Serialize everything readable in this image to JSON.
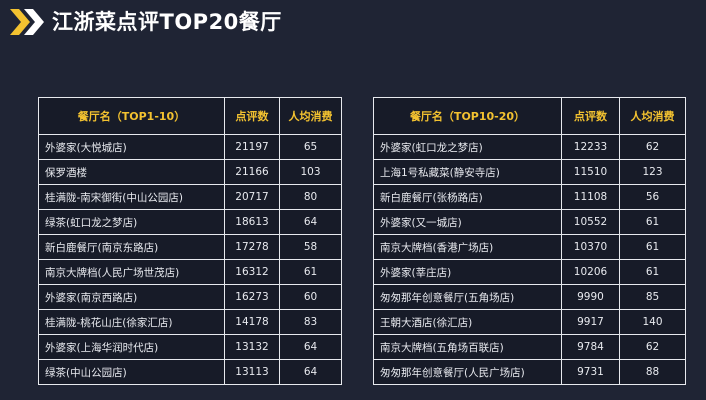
{
  "page": {
    "title": "江浙菜点评TOP20餐厅"
  },
  "colors": {
    "background": "#1f2434",
    "accent": "#f3c230",
    "text": "#e8eaef",
    "border": "#e7e9ee"
  },
  "icons": {
    "header": "double-chevron-right-icon"
  },
  "left_table": {
    "headers": [
      "餐厅名（TOP1-10）",
      "点评数",
      "人均消费"
    ],
    "rows": [
      [
        "外婆家(大悦城店)",
        "21197",
        "65"
      ],
      [
        "保罗酒楼",
        "21166",
        "103"
      ],
      [
        "桂满陇-南宋御街(中山公园店)",
        "20717",
        "80"
      ],
      [
        "绿茶(虹口龙之梦店)",
        "18613",
        "64"
      ],
      [
        "新白鹿餐厅(南京东路店)",
        "17278",
        "58"
      ],
      [
        "南京大牌档(人民广场世茂店)",
        "16312",
        "61"
      ],
      [
        "外婆家(南京西路店)",
        "16273",
        "60"
      ],
      [
        "桂满陇-桃花山庄(徐家汇店)",
        "14178",
        "83"
      ],
      [
        "外婆家(上海华润时代店)",
        "13132",
        "64"
      ],
      [
        "绿茶(中山公园店)",
        "13113",
        "64"
      ]
    ]
  },
  "right_table": {
    "headers": [
      "餐厅名（TOP10-20）",
      "点评数",
      "人均消费"
    ],
    "rows": [
      [
        "外婆家(虹口龙之梦店)",
        "12233",
        "62"
      ],
      [
        "上海1号私藏菜(静安寺店)",
        "11510",
        "123"
      ],
      [
        "新白鹿餐厅(张杨路店)",
        "11108",
        "56"
      ],
      [
        "外婆家(又一城店)",
        "10552",
        "61"
      ],
      [
        "南京大牌档(香港广场店)",
        "10370",
        "61"
      ],
      [
        "外婆家(莘庄店)",
        "10206",
        "61"
      ],
      [
        "匆匆那年创意餐厅(五角场店)",
        "9990",
        "85"
      ],
      [
        "王朝大酒店(徐汇店)",
        "9917",
        "140"
      ],
      [
        "南京大牌档(五角场百联店)",
        "9784",
        "62"
      ],
      [
        "匆匆那年创意餐厅(人民广场店)",
        "9731",
        "88"
      ]
    ]
  }
}
